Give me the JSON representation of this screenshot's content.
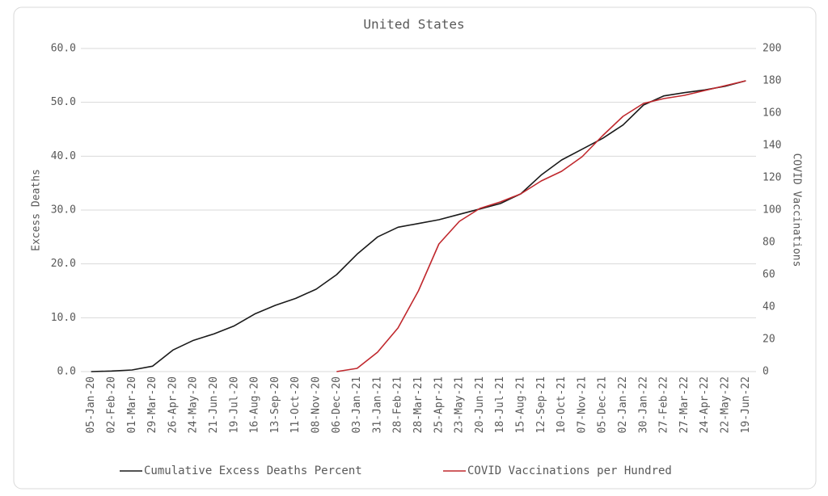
{
  "chart_data": {
    "type": "line",
    "title": "United States",
    "y_label": "Excess Deaths",
    "y2_label": "COVID Vaccinations",
    "categories": [
      "05-Jan-20",
      "02-Feb-20",
      "01-Mar-20",
      "29-Mar-20",
      "26-Apr-20",
      "24-May-20",
      "21-Jun-20",
      "19-Jul-20",
      "16-Aug-20",
      "13-Sep-20",
      "11-Oct-20",
      "08-Nov-20",
      "06-Dec-20",
      "03-Jan-21",
      "31-Jan-21",
      "28-Feb-21",
      "28-Mar-21",
      "25-Apr-21",
      "23-May-21",
      "20-Jun-21",
      "18-Jul-21",
      "15-Aug-21",
      "12-Sep-21",
      "10-Oct-21",
      "07-Nov-21",
      "05-Dec-21",
      "02-Jan-22",
      "30-Jan-22",
      "27-Feb-22",
      "27-Mar-22",
      "24-Apr-22",
      "22-May-22",
      "19-Jun-22"
    ],
    "series": [
      {
        "name": "Cumulative Excess Deaths Percent",
        "color": "#1a1a1a",
        "axis": "y",
        "values": [
          0,
          0.1,
          0.3,
          1.0,
          4.0,
          5.8,
          7.0,
          8.5,
          10.7,
          12.3,
          13.6,
          15.3,
          18.0,
          21.8,
          25.0,
          26.8,
          27.5,
          28.2,
          29.2,
          30.2,
          31.2,
          33.0,
          36.5,
          39.3,
          41.3,
          43.3,
          45.8,
          49.5,
          51.2,
          51.8,
          52.3,
          53.0,
          54.0
        ]
      },
      {
        "name": "COVID Vaccinations per Hundred",
        "color": "#c0282d",
        "axis": "y2",
        "values": [
          null,
          null,
          null,
          null,
          null,
          null,
          null,
          null,
          null,
          null,
          null,
          null,
          0,
          2,
          12,
          27,
          50,
          79,
          93,
          101,
          105,
          110,
          118,
          124,
          133,
          146,
          158,
          166,
          169,
          171,
          174,
          177,
          180
        ]
      }
    ],
    "ylim": [
      0,
      60
    ],
    "yticks": [
      {
        "value": 0,
        "label": "0.0"
      },
      {
        "value": 10,
        "label": "10.0"
      },
      {
        "value": 20,
        "label": "20.0"
      },
      {
        "value": 30,
        "label": "30.0"
      },
      {
        "value": 40,
        "label": "40.0"
      },
      {
        "value": 50,
        "label": "50.0"
      },
      {
        "value": 60,
        "label": "60.0"
      }
    ],
    "y2lim": [
      0,
      200
    ],
    "y2ticks": [
      0,
      20,
      40,
      60,
      80,
      100,
      120,
      140,
      160,
      180,
      200
    ],
    "grid": true,
    "legend": "bottom"
  }
}
